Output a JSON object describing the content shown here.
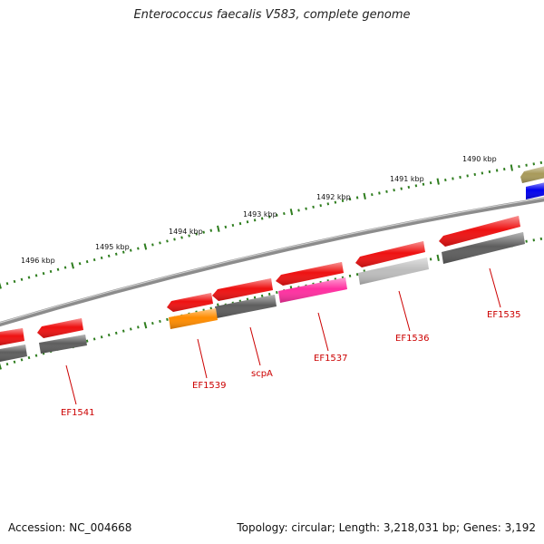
{
  "title": "Enterococcus faecalis V583, complete genome",
  "footer": {
    "accession": "Accession: NC_004668",
    "summary": "Topology: circular; Length: 3,218,031 bp; Genes: 3,192"
  },
  "scale": {
    "tick_color": "#2e7d1e",
    "labels": [
      "1490 kbp",
      "1491 kbp",
      "1492 kbp",
      "1493 kbp",
      "1494 kbp",
      "1495 kbp",
      "1496 kbp"
    ]
  },
  "genes": [
    {
      "label": "EF1535",
      "color": "#cc0000"
    },
    {
      "label": "EF1536",
      "color": "#cc0000"
    },
    {
      "label": "EF1537",
      "color": "#cc0000"
    },
    {
      "label": "scpA",
      "color": "#cc0000"
    },
    {
      "label": "EF1539",
      "color": "#cc0000"
    },
    {
      "label": "EF1541",
      "color": "#cc0000"
    }
  ],
  "feature_colors": {
    "cds": "#ee1111",
    "gene": "#5e5e5e",
    "light_gene": "#bdbdbd",
    "orange": "#ff8c00",
    "magenta": "#ff2fa0",
    "olive": "#a89a5a",
    "blue": "#0000ee",
    "backbone": "#8c8c8c"
  }
}
